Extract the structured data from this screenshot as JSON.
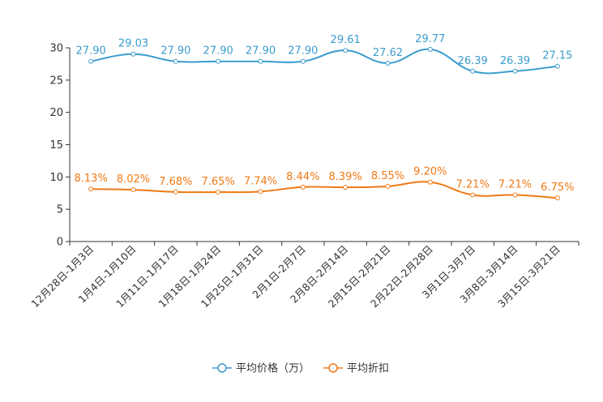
{
  "chart_data": {
    "type": "line",
    "title": "",
    "categories": [
      "12月28日-1月3日",
      "1月4日-1月10日",
      "1月11日-1月17日",
      "1月18日-1月24日",
      "1月25日-1月31日",
      "2月1日-2月7日",
      "2月8日-2月14日",
      "2月15日-2月21日",
      "2月22日-2月28日",
      "3月1日-3月7日",
      "3月8日-3月14日",
      "3月15日-3月21日"
    ],
    "ylim": [
      0,
      30
    ],
    "yticks": [
      "0",
      "5",
      "10",
      "15",
      "20",
      "25",
      "30"
    ],
    "series": [
      {
        "name": "平均价格（万）",
        "color": "#3a9ccd",
        "values": [
          27.9,
          29.03,
          27.9,
          27.9,
          27.9,
          27.9,
          29.61,
          27.62,
          29.77,
          26.39,
          26.39,
          27.15
        ],
        "labels": [
          "27.90",
          "29.03",
          "27.90",
          "27.90",
          "27.90",
          "27.90",
          "29.61",
          "27.62",
          "29.77",
          "26.39",
          "26.39",
          "27.15"
        ]
      },
      {
        "name": "平均折扣",
        "color": "#f07a16",
        "values": [
          8.13,
          8.02,
          7.68,
          7.65,
          7.74,
          8.44,
          8.39,
          8.55,
          9.2,
          7.21,
          7.21,
          6.75
        ],
        "labels": [
          "8.13%",
          "8.02%",
          "7.68%",
          "7.65%",
          "7.74%",
          "8.44%",
          "8.39%",
          "8.55%",
          "9.20%",
          "7.21%",
          "7.21%",
          "6.75%"
        ]
      }
    ],
    "legend_position": "bottom-center"
  }
}
